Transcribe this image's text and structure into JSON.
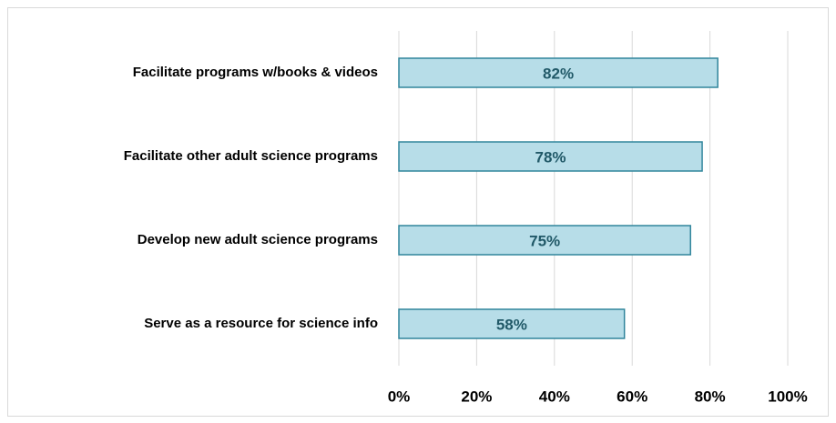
{
  "chart_data": {
    "type": "barh",
    "categories": [
      "Facilitate programs w/books & videos",
      "Facilitate other adult science programs",
      "Develop new adult science programs",
      "Serve as a resource for science info"
    ],
    "values": [
      82,
      78,
      75,
      58
    ],
    "value_labels": [
      "82%",
      "78%",
      "75%",
      "58%"
    ],
    "color": "#b7dde8",
    "edge_color": "#31859c",
    "label_color": "#215968",
    "xlim": [
      0,
      100
    ],
    "xticks": [
      {
        "value": 0,
        "label": "0%"
      },
      {
        "value": 20,
        "label": "20%"
      },
      {
        "value": 40,
        "label": "40%"
      },
      {
        "value": 60,
        "label": "60%"
      },
      {
        "value": 80,
        "label": "80%"
      },
      {
        "value": 100,
        "label": "100%"
      }
    ],
    "grid": true
  }
}
